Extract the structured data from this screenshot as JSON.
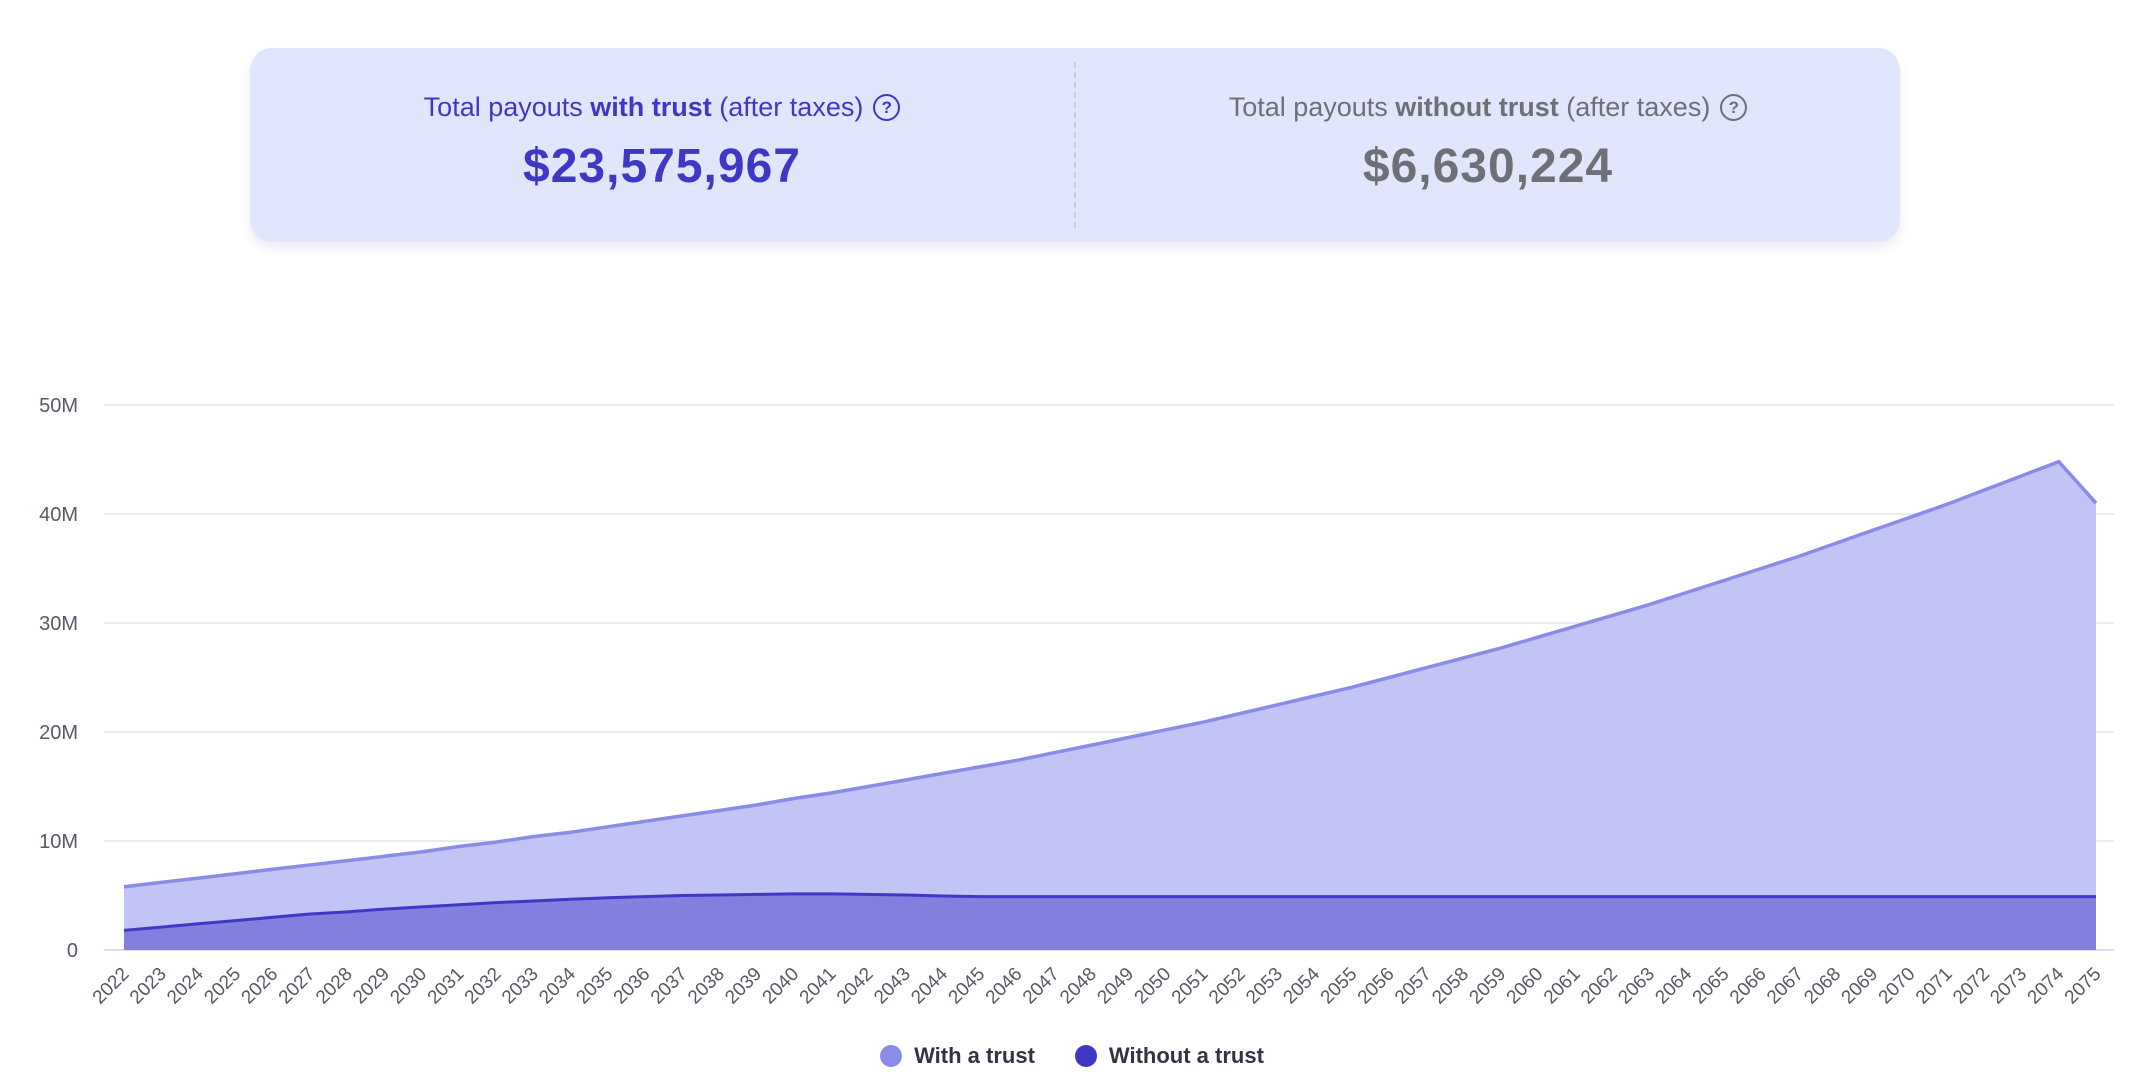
{
  "summary": {
    "with_trust": {
      "label_prefix": "Total payouts ",
      "label_bold": "with trust",
      "label_suffix": " (after taxes)",
      "value": "$23,575,967",
      "help_icon": "question-circle-icon"
    },
    "without_trust": {
      "label_prefix": "Total payouts ",
      "label_bold": "without trust",
      "label_suffix": " (after taxes)",
      "value": "$6,630,224",
      "help_icon": "question-circle-icon"
    }
  },
  "colors": {
    "card_bg": "#e1e6fc",
    "accent": "#3f38c4",
    "muted": "#6f6f78",
    "with_trust_fill": "#c1c4f5",
    "with_trust_line": "#8a8be8",
    "without_trust_fill": "#8180de",
    "without_trust_line": "#3f38c4",
    "grid": "#e3e3ea"
  },
  "chart_data": {
    "type": "area",
    "title": "",
    "xlabel": "",
    "ylabel": "",
    "ylim": [
      0,
      50000000
    ],
    "y_ticks": [
      0,
      10000000,
      20000000,
      30000000,
      40000000,
      50000000
    ],
    "y_tick_labels": [
      "0",
      "10M",
      "20M",
      "30M",
      "40M",
      "50M"
    ],
    "grid": true,
    "legend_position": "bottom-center",
    "x": [
      2022,
      2023,
      2024,
      2025,
      2026,
      2027,
      2028,
      2029,
      2030,
      2031,
      2032,
      2033,
      2034,
      2035,
      2036,
      2037,
      2038,
      2039,
      2040,
      2041,
      2042,
      2043,
      2044,
      2045,
      2046,
      2047,
      2048,
      2049,
      2050,
      2051,
      2052,
      2053,
      2054,
      2055,
      2056,
      2057,
      2058,
      2059,
      2060,
      2061,
      2062,
      2063,
      2064,
      2065,
      2066,
      2067,
      2068,
      2069,
      2070,
      2071,
      2072,
      2073,
      2074,
      2075
    ],
    "series": [
      {
        "name": "With a trust",
        "values": [
          5800000,
          6200000,
          6600000,
          7000000,
          7400000,
          7800000,
          8200000,
          8600000,
          9000000,
          9500000,
          9900000,
          10400000,
          10800000,
          11300000,
          11800000,
          12300000,
          12800000,
          13300000,
          13900000,
          14400000,
          15000000,
          15600000,
          16200000,
          16800000,
          17400000,
          18100000,
          18800000,
          19500000,
          20200000,
          20900000,
          21700000,
          22500000,
          23300000,
          24100000,
          25000000,
          25900000,
          26800000,
          27700000,
          28700000,
          29700000,
          30700000,
          31700000,
          32800000,
          33900000,
          35000000,
          36100000,
          37300000,
          38500000,
          39700000,
          40900000,
          42200000,
          43500000,
          44800000,
          41000000
        ]
      },
      {
        "name": "Without a trust",
        "values": [
          1800000,
          2100000,
          2400000,
          2700000,
          3000000,
          3300000,
          3500000,
          3750000,
          3950000,
          4150000,
          4350000,
          4500000,
          4650000,
          4800000,
          4900000,
          5000000,
          5050000,
          5100000,
          5150000,
          5150000,
          5100000,
          5050000,
          4950000,
          4900000,
          4900000,
          4900000,
          4900000,
          4900000,
          4900000,
          4900000,
          4900000,
          4900000,
          4900000,
          4900000,
          4900000,
          4900000,
          4900000,
          4900000,
          4900000,
          4900000,
          4900000,
          4900000,
          4900000,
          4900000,
          4900000,
          4900000,
          4900000,
          4900000,
          4900000,
          4900000,
          4900000,
          4900000,
          4900000,
          4900000
        ]
      }
    ]
  }
}
